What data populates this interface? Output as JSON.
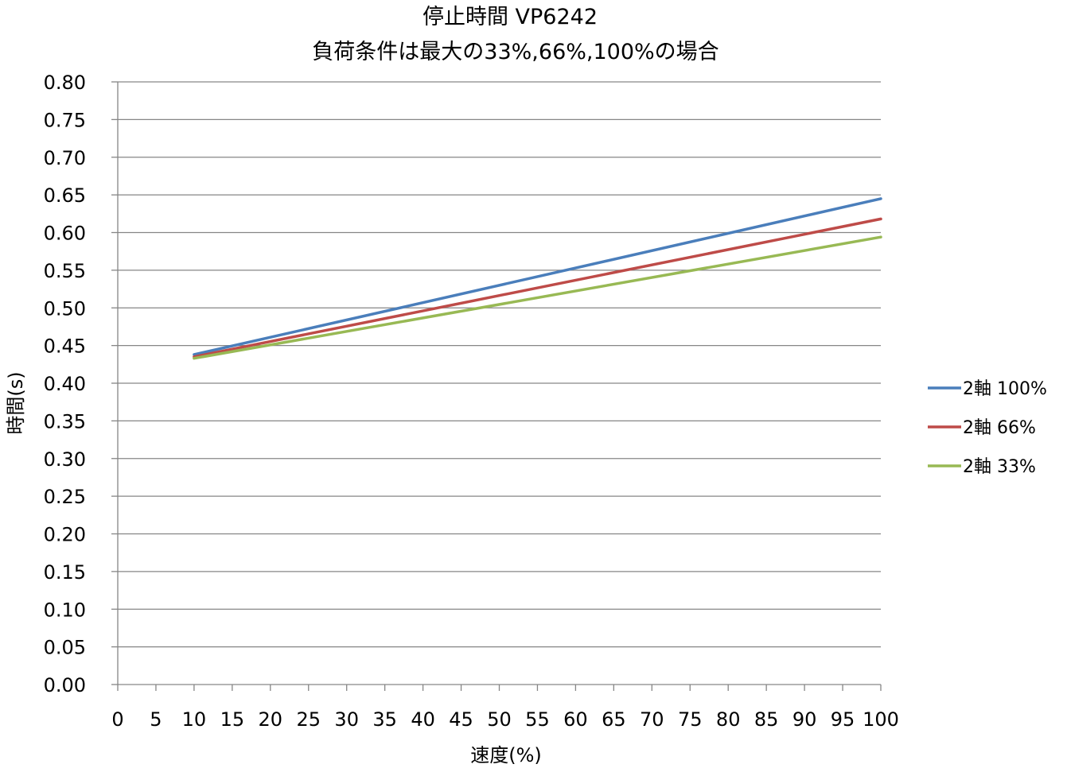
{
  "chart_data": {
    "type": "line",
    "title": "停止時間 VP6242",
    "subtitle": "負荷条件は最大の33%,66%,100%の場合",
    "xlabel": "速度(%)",
    "ylabel": "時間(s)",
    "xlim": [
      0,
      100
    ],
    "ylim": [
      0,
      0.8
    ],
    "x_ticks": [
      "0",
      "5",
      "10",
      "15",
      "20",
      "25",
      "30",
      "35",
      "40",
      "45",
      "50",
      "55",
      "60",
      "65",
      "70",
      "75",
      "80",
      "85",
      "90",
      "95",
      "100"
    ],
    "y_ticks": [
      "0.00",
      "0.05",
      "0.10",
      "0.15",
      "0.20",
      "0.25",
      "0.30",
      "0.35",
      "0.40",
      "0.45",
      "0.50",
      "0.55",
      "0.60",
      "0.65",
      "0.70",
      "0.75",
      "0.80"
    ],
    "grid": true,
    "legend_position": "right",
    "series": [
      {
        "name": "2軸 100%",
        "color": "#4a7ebb",
        "x": [
          10,
          100
        ],
        "y": [
          0.438,
          0.645
        ]
      },
      {
        "name": "2軸 66%",
        "color": "#be4b48",
        "x": [
          10,
          100
        ],
        "y": [
          0.435,
          0.618
        ]
      },
      {
        "name": "2軸 33%",
        "color": "#98b954",
        "x": [
          10,
          100
        ],
        "y": [
          0.433,
          0.594
        ]
      }
    ]
  }
}
